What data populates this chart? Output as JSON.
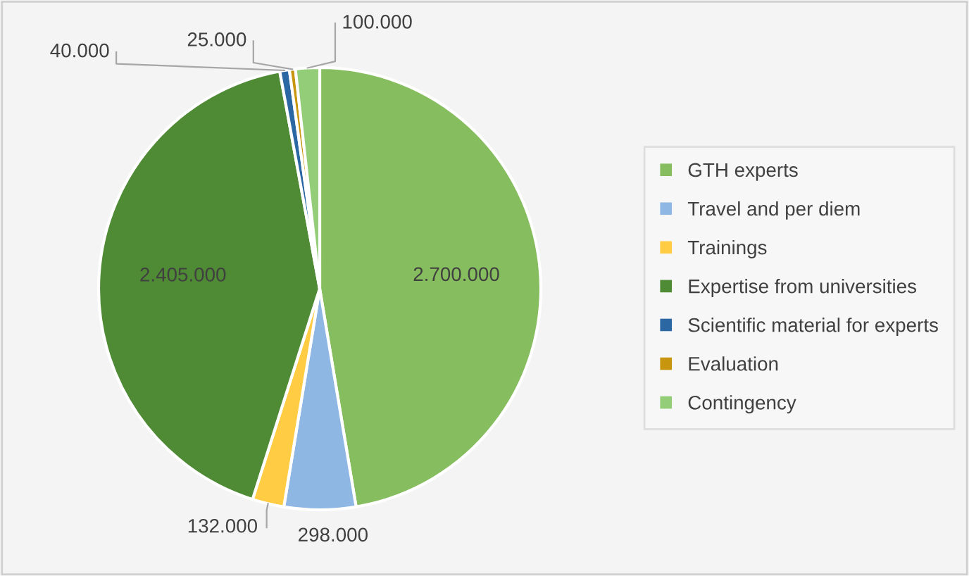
{
  "chart_data": {
    "type": "pie",
    "categories": [
      "GTH experts",
      "Travel and per diem",
      "Trainings",
      "Expertise from universities",
      "Scientific material for experts",
      "Evaluation",
      "Contingency"
    ],
    "values": [
      2700000,
      298000,
      132000,
      2405000,
      40000,
      25000,
      100000
    ],
    "value_labels": [
      "2.700.000",
      "298.000",
      "132.000",
      "2.405.000",
      "40.000",
      "25.000",
      "100.000"
    ],
    "colors": [
      "#86bd5e",
      "#8eb8e3",
      "#ffcc44",
      "#4f8a34",
      "#2a67a3",
      "#c8960e",
      "#93cd77"
    ],
    "legend": "right"
  }
}
